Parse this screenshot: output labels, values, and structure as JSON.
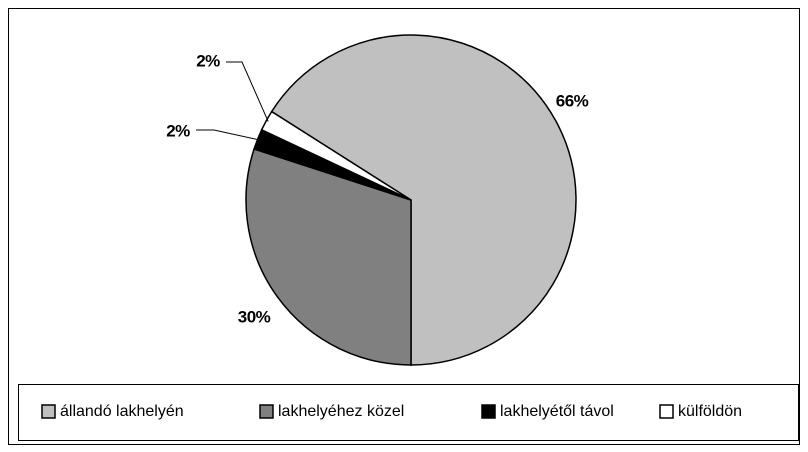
{
  "chart_data": {
    "type": "pie",
    "categories": [
      "állandó lakhelyén",
      "lakhelyéhez közel",
      "lakhelyétől távol",
      "külföldön"
    ],
    "values": [
      66,
      30,
      2,
      2
    ],
    "value_labels": [
      "66%",
      "30%",
      "2%",
      "2%"
    ],
    "colors": [
      "#c0c0c0",
      "#808080",
      "#000000",
      "#ffffff"
    ],
    "legend": "bottom"
  }
}
